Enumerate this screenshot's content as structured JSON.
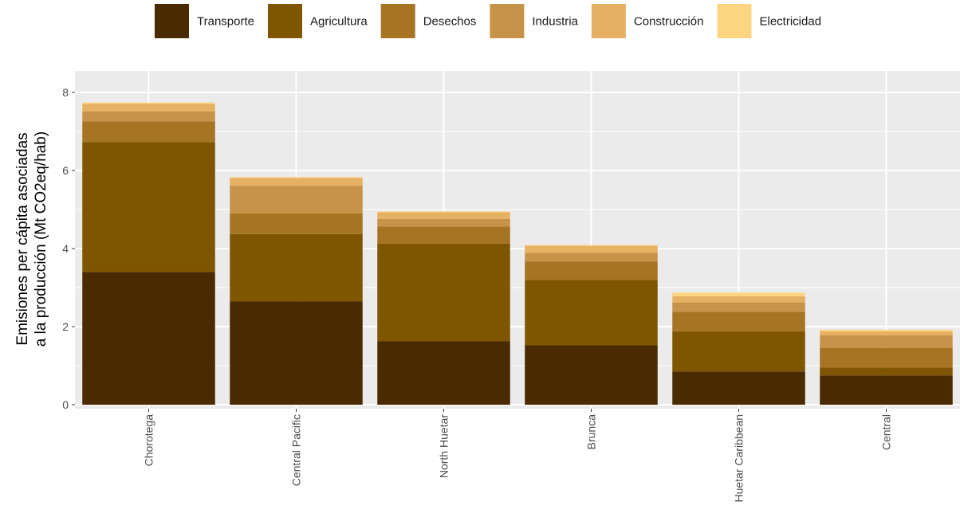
{
  "chart_data": {
    "type": "bar",
    "stacked": true,
    "categories": [
      "Chorotega",
      "Central Pacific",
      "North Huetar",
      "Brunca",
      "Huetar Caribbean",
      "Central"
    ],
    "series": [
      {
        "name": "Transporte",
        "color": "#4a2a00",
        "values": [
          3.4,
          2.65,
          1.63,
          1.52,
          0.85,
          0.75
        ]
      },
      {
        "name": "Agricultura",
        "color": "#7f5500",
        "values": [
          3.33,
          1.72,
          2.5,
          1.68,
          1.03,
          0.2
        ]
      },
      {
        "name": "Desechos",
        "color": "#a57524",
        "values": [
          0.53,
          0.53,
          0.43,
          0.47,
          0.5,
          0.5
        ]
      },
      {
        "name": "Industria",
        "color": "#c79349",
        "values": [
          0.25,
          0.71,
          0.2,
          0.22,
          0.24,
          0.33
        ]
      },
      {
        "name": "Construcción",
        "color": "#e6b163",
        "values": [
          0.2,
          0.2,
          0.17,
          0.18,
          0.16,
          0.1
        ]
      },
      {
        "name": "Electricidad",
        "color": "#fdd581",
        "values": [
          0.03,
          0.02,
          0.02,
          0.02,
          0.09,
          0.04
        ]
      }
    ],
    "ylabel_lines": [
      "Emisiones per cápita asociadas",
      "a la producción (Mt CO2eq/hab)"
    ],
    "xlabel": "",
    "ylim": [
      -0.1,
      8.45
    ],
    "yticks": [
      0,
      2,
      4,
      6,
      8
    ],
    "grid": true,
    "legend_position": "top",
    "panel_background": "#ebebeb",
    "grid_color": "#ffffff"
  }
}
